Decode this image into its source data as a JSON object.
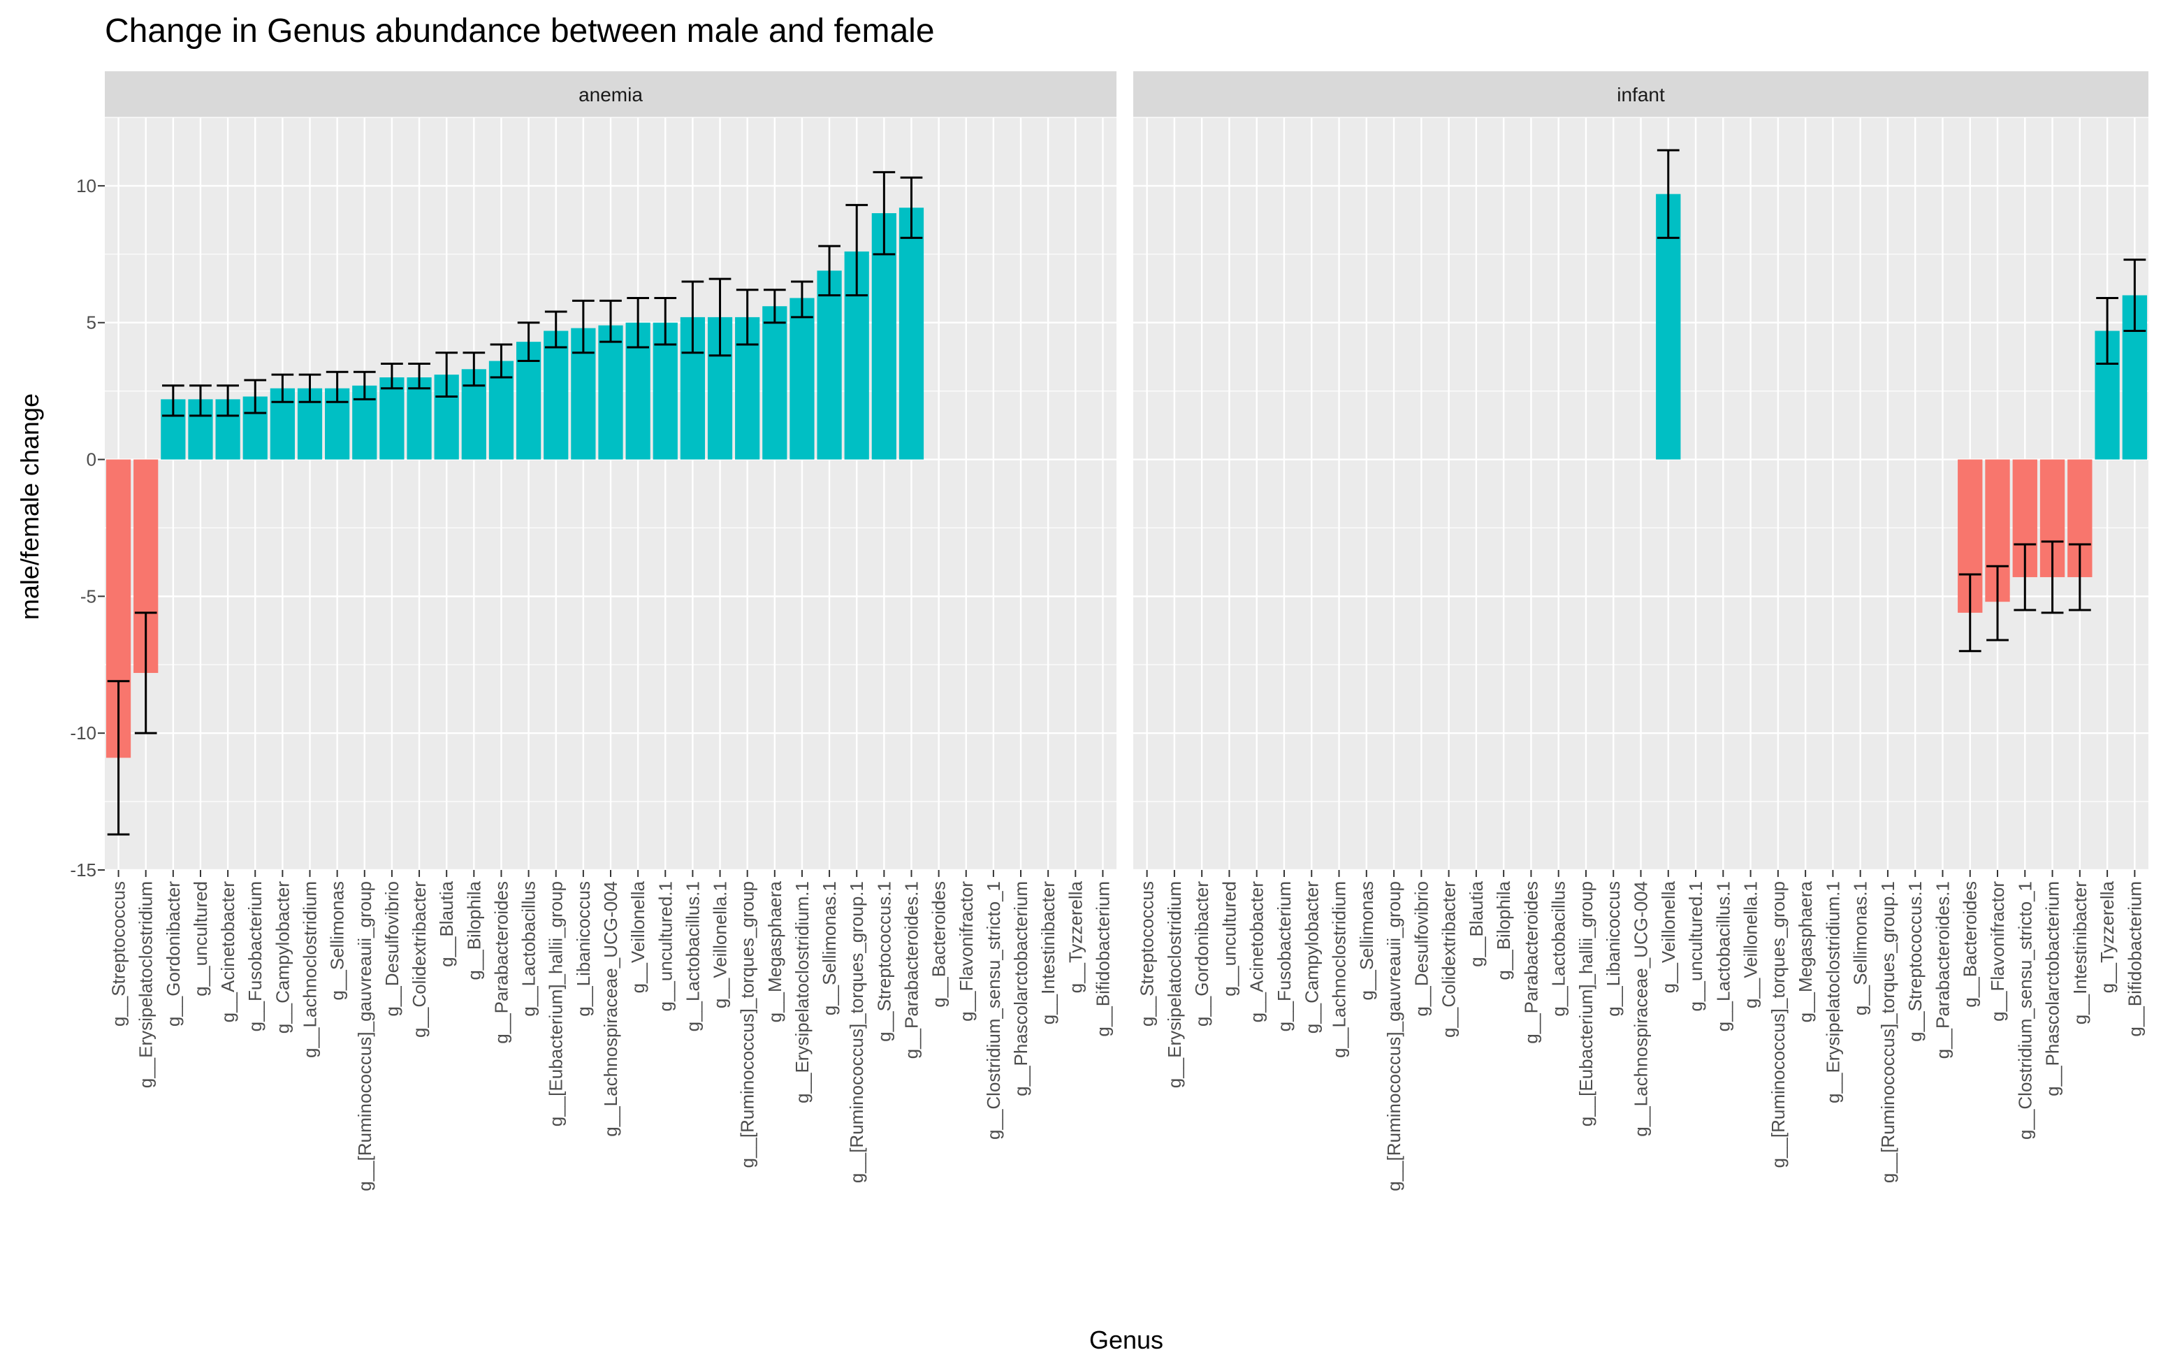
{
  "chart_data": {
    "type": "bar",
    "title": "Change in Genus abundance between male and female",
    "xlabel": "Genus",
    "ylabel": "male/female change",
    "ylim": [
      -15,
      12.5
    ],
    "y_ticks": [
      -15,
      -10,
      -5,
      0,
      5,
      10
    ],
    "grid": true,
    "colors": {
      "negative": "#F8766D",
      "positive": "#00BFC4",
      "panel_bg": "#EBEBEB",
      "strip_bg": "#D9D9D9",
      "grid": "#FFFFFF",
      "errorbar": "#000000"
    },
    "categories": [
      "g__Streptococcus",
      "g__Erysipelatoclostridium",
      "g__Gordonibacter",
      "g__uncultured",
      "g__Acinetobacter",
      "g__Fusobacterium",
      "g__Campylobacter",
      "g__Lachnoclostridium",
      "g__Sellimonas",
      "g__[Ruminococcus]_gauvreauii_group",
      "g__Desulfovibrio",
      "g__Colidextribacter",
      "g__Blautia",
      "g__Bilophila",
      "g__Parabacteroides",
      "g__Lactobacillus",
      "g__[Eubacterium]_hallii_group",
      "g__Libanicoccus",
      "g__Lachnospiraceae_UCG-004",
      "g__Veillonella",
      "g__uncultured.1",
      "g__Lactobacillus.1",
      "g__Veillonella.1",
      "g__[Ruminococcus]_torques_group",
      "g__Megasphaera",
      "g__Erysipelatoclostridium.1",
      "g__Sellimonas.1",
      "g__[Ruminococcus]_torques_group.1",
      "g__Streptococcus.1",
      "g__Parabacteroides.1",
      "g__Bacteroides",
      "g__Flavonifractor",
      "g__Clostridium_sensu_stricto_1",
      "g__Phascolarctobacterium",
      "g__Intestinibacter",
      "g__Tyzzerella",
      "g__Bifidobacterium"
    ],
    "panels": [
      {
        "name": "anemia",
        "values": [
          -10.9,
          -7.8,
          2.2,
          2.2,
          2.2,
          2.3,
          2.6,
          2.6,
          2.6,
          2.7,
          3.0,
          3.0,
          3.1,
          3.3,
          3.6,
          4.3,
          4.7,
          4.8,
          4.9,
          5.0,
          5.0,
          5.2,
          5.2,
          5.2,
          5.6,
          5.9,
          6.9,
          7.6,
          9.0,
          9.2,
          null,
          null,
          null,
          null,
          null,
          null,
          null
        ],
        "lower": [
          -13.7,
          -10.0,
          1.6,
          1.6,
          1.6,
          1.7,
          2.1,
          2.1,
          2.1,
          2.2,
          2.6,
          2.6,
          2.3,
          2.7,
          3.0,
          3.6,
          4.1,
          3.9,
          4.3,
          4.1,
          4.2,
          3.9,
          3.8,
          4.2,
          5.0,
          5.2,
          6.0,
          6.0,
          7.5,
          8.1,
          null,
          null,
          null,
          null,
          null,
          null,
          null
        ],
        "upper": [
          -8.1,
          -5.6,
          2.7,
          2.7,
          2.7,
          2.9,
          3.1,
          3.1,
          3.2,
          3.2,
          3.5,
          3.5,
          3.9,
          3.9,
          4.2,
          5.0,
          5.4,
          5.8,
          5.8,
          5.9,
          5.9,
          6.5,
          6.6,
          6.2,
          6.2,
          6.5,
          7.8,
          9.3,
          10.5,
          10.3,
          null,
          null,
          null,
          null,
          null,
          null,
          null
        ]
      },
      {
        "name": "infant",
        "values": [
          null,
          null,
          null,
          null,
          null,
          null,
          null,
          null,
          null,
          null,
          null,
          null,
          null,
          null,
          null,
          null,
          null,
          null,
          null,
          9.7,
          null,
          null,
          null,
          null,
          null,
          null,
          null,
          null,
          null,
          null,
          -5.6,
          -5.2,
          -4.3,
          -4.3,
          -4.3,
          4.7,
          6.0
        ],
        "lower": [
          null,
          null,
          null,
          null,
          null,
          null,
          null,
          null,
          null,
          null,
          null,
          null,
          null,
          null,
          null,
          null,
          null,
          null,
          null,
          8.1,
          null,
          null,
          null,
          null,
          null,
          null,
          null,
          null,
          null,
          null,
          -7.0,
          -6.6,
          -5.5,
          -5.6,
          -5.5,
          3.5,
          4.7
        ],
        "upper": [
          null,
          null,
          null,
          null,
          null,
          null,
          null,
          null,
          null,
          null,
          null,
          null,
          null,
          null,
          null,
          null,
          null,
          null,
          null,
          11.3,
          null,
          null,
          null,
          null,
          null,
          null,
          null,
          null,
          null,
          null,
          -4.2,
          -3.9,
          -3.1,
          -3.0,
          -3.1,
          5.9,
          7.3
        ]
      }
    ]
  }
}
